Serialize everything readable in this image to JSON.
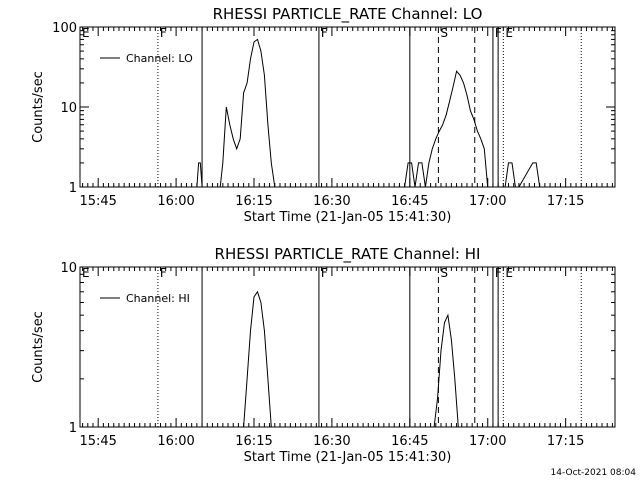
{
  "chart_data": [
    {
      "type": "line",
      "title": "RHESSI PARTICLE_RATE Channel: LO",
      "xlabel": "Start Time (21-Jan-05 15:41:30)",
      "ylabel": "Counts/sec",
      "yscale": "log",
      "xlim": [
        "15:41:30",
        "17:24:30"
      ],
      "ylim": [
        1,
        100
      ],
      "xticks": [
        "15:45",
        "16:00",
        "16:15",
        "16:30",
        "16:45",
        "17:00",
        "17:15"
      ],
      "yticks": [
        "1",
        "10",
        "100"
      ],
      "legend": {
        "label": "Channel: LO",
        "position": "top-left"
      },
      "series": [
        {
          "name": "Channel: LO",
          "x": [
            "16:04:00",
            "16:04:20",
            "16:04:40",
            "16:05:00",
            "16:08:30",
            "16:09:00",
            "16:09:40",
            "16:10:20",
            "16:11:00",
            "16:11:40",
            "16:12:20",
            "16:13:00",
            "16:13:40",
            "16:14:20",
            "16:15:00",
            "16:15:40",
            "16:16:20",
            "16:17:00",
            "16:17:40",
            "16:18:20",
            "16:19:00",
            "16:44:00",
            "16:44:40",
            "16:45:20",
            "16:46:00",
            "16:46:40",
            "16:47:20",
            "16:48:00",
            "16:48:40",
            "16:49:20",
            "16:50:00",
            "16:50:40",
            "16:51:20",
            "16:52:00",
            "16:52:40",
            "16:53:20",
            "16:54:00",
            "16:54:40",
            "16:55:20",
            "16:56:00",
            "16:56:40",
            "16:57:20",
            "16:58:00",
            "16:58:40",
            "16:59:20",
            "17:00:00",
            "17:03:20",
            "17:04:00",
            "17:04:40",
            "17:05:20",
            "17:06:00",
            "17:08:40",
            "17:09:20",
            "17:10:00"
          ],
          "y": [
            1,
            2,
            2,
            1,
            1,
            2,
            10,
            6,
            4,
            3,
            4,
            15,
            20,
            40,
            65,
            70,
            50,
            25,
            6,
            2,
            1,
            1,
            2,
            2,
            1,
            2,
            2,
            1,
            2,
            3,
            4,
            5,
            6,
            8,
            12,
            18,
            28,
            25,
            20,
            14,
            9,
            7,
            5,
            4,
            3,
            1,
            1,
            2,
            2,
            1,
            1,
            2,
            2,
            1
          ]
        }
      ],
      "event_lines": [
        {
          "label": "F",
          "time": "15:56:30",
          "style": "dotted"
        },
        {
          "label": "",
          "time": "16:05:00",
          "style": "solid"
        },
        {
          "label": "F",
          "time": "16:27:30",
          "style": "solid"
        },
        {
          "label": "",
          "time": "16:45:00",
          "style": "solid"
        },
        {
          "label": "S",
          "time": "16:50:30",
          "style": "dashed"
        },
        {
          "label": "",
          "time": "16:57:30",
          "style": "dashed"
        },
        {
          "label": "F",
          "time": "17:01:00",
          "style": "solid"
        },
        {
          "label": "",
          "time": "17:02:00",
          "style": "solid"
        },
        {
          "label": "E",
          "time": "17:03:00",
          "style": "dotted"
        },
        {
          "label": "",
          "time": "17:18:00",
          "style": "dotted"
        }
      ],
      "edge_labels": [
        {
          "label": "E",
          "time": "15:41:30"
        }
      ]
    },
    {
      "type": "line",
      "title": "RHESSI PARTICLE_RATE Channel: HI",
      "xlabel": "Start Time (21-Jan-05 15:41:30)",
      "ylabel": "Counts/sec",
      "yscale": "log",
      "xlim": [
        "15:41:30",
        "17:24:30"
      ],
      "ylim": [
        1,
        10
      ],
      "xticks": [
        "15:45",
        "16:00",
        "16:15",
        "16:30",
        "16:45",
        "17:00",
        "17:15"
      ],
      "yticks": [
        "1",
        "10"
      ],
      "legend": {
        "label": "Channel: HI",
        "position": "top-left"
      },
      "series": [
        {
          "name": "Channel: HI",
          "x": [
            "16:13:00",
            "16:13:40",
            "16:14:20",
            "16:15:00",
            "16:15:40",
            "16:16:20",
            "16:17:00",
            "16:17:40",
            "16:18:20",
            "16:49:40",
            "16:50:20",
            "16:51:00",
            "16:51:40",
            "16:52:20",
            "16:53:00",
            "16:53:40",
            "16:54:20"
          ],
          "y": [
            1,
            2,
            4,
            6.5,
            7,
            6,
            4,
            2,
            1,
            1,
            1.5,
            3,
            4.5,
            5,
            3.5,
            2,
            1
          ]
        }
      ],
      "event_lines": [
        {
          "label": "F",
          "time": "15:56:30",
          "style": "dotted"
        },
        {
          "label": "",
          "time": "16:05:00",
          "style": "solid"
        },
        {
          "label": "F",
          "time": "16:27:30",
          "style": "solid"
        },
        {
          "label": "",
          "time": "16:45:00",
          "style": "solid"
        },
        {
          "label": "S",
          "time": "16:50:30",
          "style": "dashed"
        },
        {
          "label": "",
          "time": "16:57:30",
          "style": "dashed"
        },
        {
          "label": "F",
          "time": "17:01:00",
          "style": "solid"
        },
        {
          "label": "",
          "time": "17:02:00",
          "style": "solid"
        },
        {
          "label": "E",
          "time": "17:03:00",
          "style": "dotted"
        },
        {
          "label": "",
          "time": "17:18:00",
          "style": "dotted"
        }
      ],
      "edge_labels": [
        {
          "label": "E",
          "time": "15:41:30"
        }
      ]
    }
  ],
  "footer": {
    "timestamp": "14-Oct-2021 08:04"
  }
}
